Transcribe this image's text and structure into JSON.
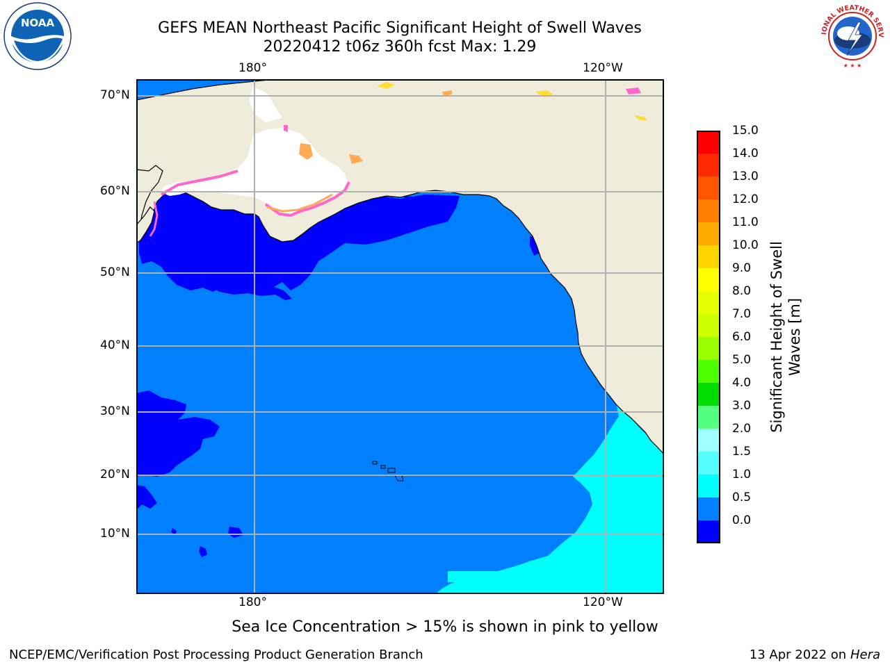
{
  "header": {
    "title_line1": "GEFS MEAN Northeast Pacific Significant Height of Swell Waves",
    "title_line2": "20220412 t06z 360h fcst   Max: 1.29",
    "left_logo": {
      "icon": "noaa-logo-icon",
      "text": "NOAA"
    },
    "right_logo": {
      "icon": "nws-logo-icon",
      "text": "NATIONAL WEATHER SERVICE"
    }
  },
  "map": {
    "x_ticks_top": [
      "180°",
      "120°W"
    ],
    "x_ticks_bottom": [
      "180°",
      "120°W"
    ],
    "y_ticks": [
      "70°N",
      "60°N",
      "50°N",
      "40°N",
      "30°N",
      "20°N",
      "10°N"
    ],
    "gridlines": true,
    "colors": {
      "land": "#efecdc",
      "ocean_0_0.5": "#0000ff",
      "ocean_0.5_1.0": "#0080ff",
      "ocean_1.0_1.5": "#00ffff",
      "sea_ice": "#ffffff"
    }
  },
  "colorbar": {
    "title_line1": "Significant Height of Swell",
    "title_line2": "Waves [m]",
    "labels": [
      "15.0",
      "14.0",
      "13.0",
      "12.0",
      "11.0",
      "10.0",
      "9.0",
      "8.0",
      "7.0",
      "6.0",
      "5.0",
      "4.0",
      "3.0",
      "2.0",
      "1.5",
      "1.0",
      "0.5",
      "0.0"
    ],
    "colors_top_to_bottom": [
      "#ff0000",
      "#ff2a00",
      "#ff5500",
      "#ff8000",
      "#ffaa00",
      "#ffd500",
      "#ffff00",
      "#e6ff00",
      "#ccff00",
      "#99ff00",
      "#4dff00",
      "#00dd00",
      "#55ff80",
      "#a0ffff",
      "#55ffff",
      "#00ffff",
      "#0080ff",
      "#0000ff"
    ]
  },
  "caption": "Sea Ice Concentration > 15% is shown in pink to yellow",
  "footer": {
    "left": "NCEP/EMC/Verification Post Processing Product Generation Branch",
    "right_date": "13 Apr 2022 on ",
    "right_host": "Hera"
  }
}
